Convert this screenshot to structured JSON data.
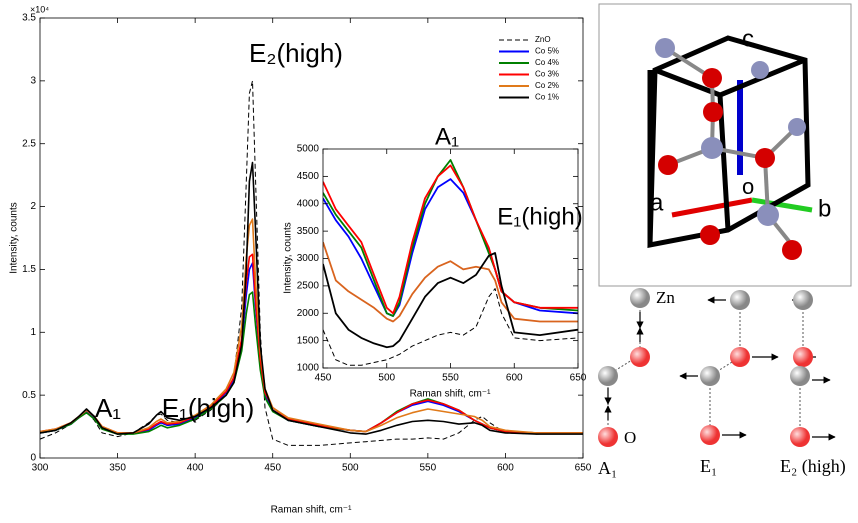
{
  "chart_data": [
    {
      "type": "line",
      "xlabel": "Raman shift, cm⁻¹",
      "ylabel": "Intensity, counts",
      "exponent_label": "×10⁴",
      "annotations": [
        "E₂(high)",
        "A₁",
        "E₁(high)"
      ],
      "xlim": [
        300,
        650
      ],
      "xticks": [
        300,
        350,
        400,
        450,
        500,
        550,
        600,
        650
      ],
      "ylim": [
        0,
        3.5
      ],
      "yticks": [
        0,
        0.5,
        1,
        1.5,
        2,
        2.5,
        3,
        3.5
      ],
      "legend": "upper right",
      "x": [
        300,
        310,
        320,
        325,
        330,
        335,
        340,
        350,
        360,
        370,
        375,
        378,
        382,
        390,
        400,
        410,
        420,
        425,
        430,
        433,
        435,
        437,
        439,
        442,
        445,
        450,
        460,
        480,
        500,
        510,
        520,
        530,
        540,
        550,
        560,
        570,
        580,
        585,
        590,
        600,
        620,
        650
      ],
      "series": [
        {
          "name": "ZnO",
          "color": "#000000",
          "dashed": true,
          "values": [
            0.15,
            0.2,
            0.27,
            0.32,
            0.37,
            0.3,
            0.2,
            0.17,
            0.2,
            0.28,
            0.34,
            0.35,
            0.3,
            0.28,
            0.3,
            0.38,
            0.5,
            0.65,
            1.2,
            2.2,
            2.9,
            3.0,
            2.2,
            1.0,
            0.4,
            0.15,
            0.1,
            0.1,
            0.12,
            0.13,
            0.14,
            0.15,
            0.15,
            0.16,
            0.15,
            0.2,
            0.3,
            0.33,
            0.28,
            0.2,
            0.19,
            0.2
          ]
        },
        {
          "name": "Co 5%",
          "color": "#0000ff",
          "values": [
            0.2,
            0.22,
            0.27,
            0.32,
            0.37,
            0.32,
            0.24,
            0.2,
            0.2,
            0.22,
            0.26,
            0.28,
            0.26,
            0.27,
            0.32,
            0.4,
            0.52,
            0.62,
            0.9,
            1.3,
            1.5,
            1.55,
            1.2,
            0.75,
            0.5,
            0.38,
            0.3,
            0.25,
            0.22,
            0.21,
            0.28,
            0.36,
            0.42,
            0.45,
            0.42,
            0.37,
            0.3,
            0.27,
            0.24,
            0.21,
            0.2,
            0.2
          ]
        },
        {
          "name": "Co 4%",
          "color": "#008000",
          "values": [
            0.2,
            0.22,
            0.27,
            0.32,
            0.36,
            0.31,
            0.23,
            0.19,
            0.19,
            0.21,
            0.24,
            0.26,
            0.24,
            0.26,
            0.31,
            0.39,
            0.5,
            0.6,
            0.85,
            1.15,
            1.3,
            1.32,
            1.05,
            0.7,
            0.48,
            0.37,
            0.3,
            0.25,
            0.22,
            0.21,
            0.28,
            0.37,
            0.43,
            0.47,
            0.43,
            0.38,
            0.3,
            0.27,
            0.24,
            0.21,
            0.2,
            0.2
          ]
        },
        {
          "name": "Co 3%",
          "color": "#ff0000",
          "values": [
            0.21,
            0.23,
            0.28,
            0.33,
            0.38,
            0.33,
            0.25,
            0.2,
            0.2,
            0.23,
            0.27,
            0.29,
            0.27,
            0.28,
            0.33,
            0.41,
            0.53,
            0.64,
            0.95,
            1.4,
            1.6,
            1.62,
            1.25,
            0.78,
            0.52,
            0.4,
            0.31,
            0.26,
            0.22,
            0.21,
            0.28,
            0.36,
            0.43,
            0.46,
            0.43,
            0.38,
            0.3,
            0.27,
            0.24,
            0.21,
            0.2,
            0.2
          ]
        },
        {
          "name": "Co 2%",
          "color": "#e07a1a",
          "values": [
            0.21,
            0.23,
            0.28,
            0.33,
            0.38,
            0.33,
            0.25,
            0.2,
            0.2,
            0.24,
            0.29,
            0.31,
            0.28,
            0.29,
            0.34,
            0.42,
            0.55,
            0.68,
            1.05,
            1.6,
            1.85,
            1.9,
            1.4,
            0.85,
            0.55,
            0.4,
            0.32,
            0.27,
            0.22,
            0.21,
            0.26,
            0.32,
            0.36,
            0.39,
            0.37,
            0.35,
            0.33,
            0.3,
            0.25,
            0.22,
            0.2,
            0.2
          ]
        },
        {
          "name": "Co 1%",
          "color": "#000000",
          "values": [
            0.2,
            0.22,
            0.28,
            0.33,
            0.39,
            0.33,
            0.24,
            0.19,
            0.2,
            0.27,
            0.34,
            0.37,
            0.32,
            0.3,
            0.33,
            0.4,
            0.5,
            0.6,
            0.9,
            1.5,
            2.2,
            2.35,
            1.8,
            0.9,
            0.55,
            0.38,
            0.3,
            0.25,
            0.2,
            0.19,
            0.22,
            0.26,
            0.29,
            0.3,
            0.29,
            0.27,
            0.28,
            0.26,
            0.22,
            0.2,
            0.19,
            0.19
          ]
        }
      ]
    },
    {
      "type": "line",
      "xlabel": "Raman shift, cm⁻¹",
      "ylabel": "Intensity, counts",
      "annotations": [
        "A₁",
        "E₁(high)"
      ],
      "xlim": [
        450,
        650
      ],
      "xticks": [
        450,
        500,
        550,
        600,
        650
      ],
      "ylim": [
        1000,
        5000
      ],
      "yticks": [
        1000,
        1500,
        2000,
        2500,
        3000,
        3500,
        4000,
        4500,
        5000
      ],
      "x": [
        450,
        460,
        470,
        480,
        490,
        500,
        505,
        510,
        520,
        530,
        540,
        550,
        560,
        570,
        580,
        585,
        590,
        600,
        620,
        650
      ],
      "series": [
        {
          "color": "#000000",
          "dashed": true,
          "values": [
            1700,
            1150,
            1050,
            1050,
            1100,
            1150,
            1200,
            1250,
            1400,
            1500,
            1600,
            1650,
            1600,
            1750,
            2300,
            2450,
            2000,
            1550,
            1500,
            1550
          ]
        },
        {
          "color": "#0000ff",
          "values": [
            4100,
            3700,
            3400,
            3000,
            2500,
            2000,
            1950,
            2150,
            3100,
            3900,
            4300,
            4450,
            4200,
            3700,
            3150,
            2800,
            2400,
            2200,
            2050,
            2000
          ]
        },
        {
          "color": "#008000",
          "values": [
            4200,
            3800,
            3500,
            3200,
            2600,
            2000,
            1950,
            2200,
            3200,
            4000,
            4500,
            4800,
            4300,
            3700,
            3100,
            2800,
            2400,
            2200,
            2100,
            2050
          ]
        },
        {
          "color": "#ff0000",
          "values": [
            4400,
            3900,
            3600,
            3300,
            2700,
            2100,
            2000,
            2300,
            3300,
            4100,
            4500,
            4700,
            4300,
            3700,
            3200,
            2800,
            2400,
            2200,
            2100,
            2100
          ]
        },
        {
          "color": "#d9641e",
          "values": [
            3300,
            2600,
            2400,
            2250,
            2100,
            1900,
            1850,
            1950,
            2350,
            2650,
            2850,
            2950,
            2800,
            2850,
            2800,
            2600,
            2200,
            1900,
            1850,
            1850
          ]
        },
        {
          "color": "#000000",
          "values": [
            2900,
            2000,
            1700,
            1550,
            1450,
            1380,
            1400,
            1500,
            1900,
            2300,
            2550,
            2650,
            2550,
            2700,
            3050,
            3100,
            2500,
            1650,
            1600,
            1700
          ]
        }
      ]
    }
  ],
  "diagram": {
    "axes": [
      "c",
      "a",
      "b",
      "o"
    ],
    "atoms": [
      "Zn",
      "O"
    ],
    "modes": [
      "A₁",
      "E₁",
      "E₂ (high)"
    ]
  }
}
